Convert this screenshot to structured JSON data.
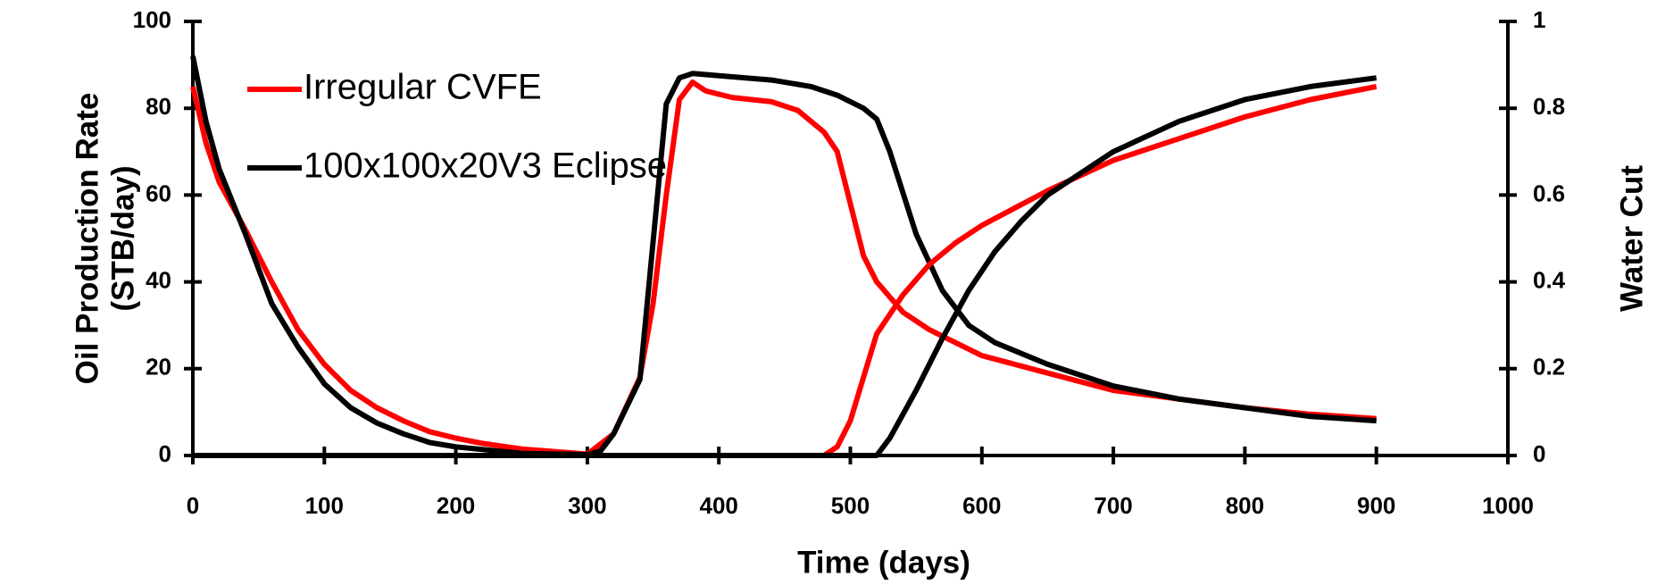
{
  "chart_data": {
    "type": "line",
    "xlabel": "Time (days)",
    "ylabel": [
      "Oil Production Rate",
      "(STB/day)"
    ],
    "y2label": "Water Cut",
    "xlim": [
      0,
      1000
    ],
    "xticks": [
      0,
      100,
      200,
      300,
      400,
      500,
      600,
      700,
      800,
      900,
      1000
    ],
    "ylim": [
      0,
      100
    ],
    "yticks": [
      0,
      20,
      40,
      60,
      80,
      100
    ],
    "y2lim": [
      0,
      1
    ],
    "y2ticks": [
      0,
      0.2,
      0.4,
      0.6,
      0.8,
      1
    ],
    "series": [
      {
        "name": "Irregular CVFE",
        "color": "#ff0000",
        "x": [
          0,
          10,
          20,
          40,
          60,
          80,
          100,
          120,
          140,
          160,
          180,
          200,
          220,
          250,
          300,
          320,
          340,
          350,
          360,
          370,
          380,
          390,
          410,
          440,
          460,
          480,
          490,
          500,
          510,
          520,
          540,
          560,
          600,
          650,
          700,
          750,
          800,
          850,
          900
        ],
        "values": [
          85,
          72,
          63,
          52,
          40,
          29,
          21,
          15,
          11,
          8,
          5.5,
          4,
          2.8,
          1.5,
          0.3,
          5,
          18,
          35,
          60,
          82,
          86,
          84,
          82.5,
          81.5,
          79.5,
          74.5,
          70,
          58,
          46,
          40,
          33,
          29,
          23,
          19,
          15,
          13,
          11,
          9.5,
          8.5
        ]
      },
      {
        "name": "100x100x20V3 Eclipse",
        "color": "#000000",
        "x": [
          0,
          10,
          20,
          40,
          60,
          80,
          100,
          120,
          140,
          160,
          180,
          200,
          250,
          300,
          310,
          320,
          340,
          360,
          370,
          380,
          400,
          440,
          470,
          490,
          510,
          520,
          530,
          550,
          570,
          590,
          610,
          650,
          700,
          750,
          800,
          850,
          900
        ],
        "values": [
          92,
          77,
          66,
          51,
          35,
          25,
          16.5,
          11,
          7.5,
          5,
          3,
          2,
          0.5,
          0.2,
          1,
          5,
          17.5,
          81,
          87,
          88,
          87.5,
          86.5,
          85,
          83,
          80,
          77.5,
          70,
          51,
          38,
          30,
          26,
          21,
          16,
          13,
          11,
          9,
          8
        ]
      },
      {
        "color": "#ff0000",
        "axis": "y2",
        "x": [
          0,
          480,
          490,
          500,
          510,
          520,
          540,
          560,
          580,
          600,
          650,
          700,
          750,
          800,
          850,
          900
        ],
        "values": [
          0,
          0,
          0.02,
          0.08,
          0.18,
          0.28,
          0.37,
          0.44,
          0.49,
          0.53,
          0.61,
          0.68,
          0.73,
          0.78,
          0.82,
          0.85
        ]
      },
      {
        "color": "#000000",
        "axis": "y2",
        "x": [
          0,
          520,
          530,
          550,
          570,
          590,
          610,
          630,
          650,
          700,
          750,
          800,
          850,
          900
        ],
        "values": [
          0,
          0,
          0.04,
          0.15,
          0.27,
          0.38,
          0.47,
          0.54,
          0.6,
          0.7,
          0.77,
          0.82,
          0.85,
          0.87
        ]
      }
    ]
  }
}
